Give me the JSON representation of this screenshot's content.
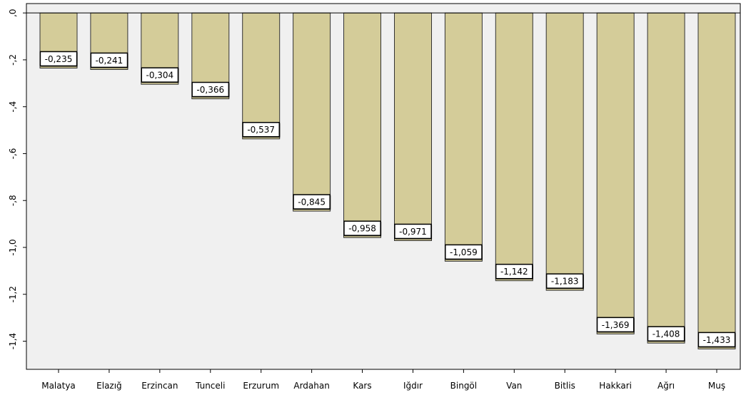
{
  "chart_data": {
    "type": "bar",
    "categories": [
      "Malatya",
      "Elazığ",
      "Erzincan",
      "Tunceli",
      "Erzurum",
      "Ardahan",
      "Kars",
      "Iğdır",
      "Bingöl",
      "Van",
      "Bitlis",
      "Hakkari",
      "Ağrı",
      "Muş"
    ],
    "values": [
      -0.235,
      -0.241,
      -0.304,
      -0.366,
      -0.537,
      -0.845,
      -0.958,
      -0.971,
      -1.059,
      -1.142,
      -1.183,
      -1.369,
      -1.408,
      -1.433
    ],
    "data_labels": [
      "-0,235",
      "-0,241",
      "-0,304",
      "-0,366",
      "-0,537",
      "-0,845",
      "-0,958",
      "-0,971",
      "-1,059",
      "-1,142",
      "-1,183",
      "-1,369",
      "-1,408",
      "-1,433"
    ],
    "yticks": [
      0,
      -0.2,
      -0.4,
      -0.6,
      -0.8,
      -1.0,
      -1.2,
      -1.4
    ],
    "ytick_labels": [
      ",0",
      "-,2",
      "-,4",
      "-,6",
      "-,8",
      "-1,0",
      "-1,2",
      "-1,4"
    ],
    "ylim": [
      -1.52,
      0.04
    ],
    "title": "",
    "xlabel": "",
    "ylabel": "",
    "grid": false,
    "legend": "none",
    "colors": {
      "bar_fill": "#D4CC99",
      "bar_stroke": "#333333",
      "plot_background": "#F0F0F0",
      "axis": "#000000",
      "label_box_fill": "#FFFFFF",
      "label_box_stroke": "#000000"
    }
  }
}
